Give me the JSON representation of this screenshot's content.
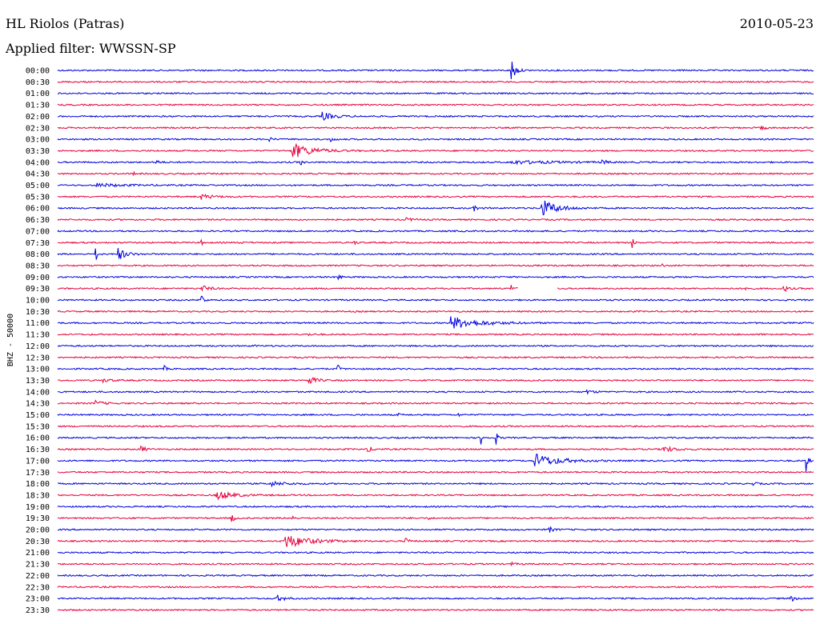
{
  "header": {
    "station": "HL Riolos (Patras)",
    "date": "2010-05-23",
    "filter": "Applied filter: WWSSN-SP"
  },
  "chart_data": {
    "type": "line",
    "title": "HL Riolos (Patras)",
    "ylabel": "BHZ - 50000",
    "colors": {
      "odd_trace": "#0000e0",
      "even_trace": "#e8003c"
    },
    "traces": [
      {
        "label": "00:00",
        "events": [
          {
            "t": 0.6,
            "amp": 18,
            "dur": 0.01
          }
        ]
      },
      {
        "label": "00:30",
        "events": []
      },
      {
        "label": "01:00",
        "events": []
      },
      {
        "label": "01:30",
        "events": []
      },
      {
        "label": "02:00",
        "events": [
          {
            "t": 0.35,
            "amp": 5,
            "dur": 0.03
          }
        ]
      },
      {
        "label": "02:30",
        "events": [
          {
            "t": 0.93,
            "amp": 3,
            "dur": 0.01
          }
        ]
      },
      {
        "label": "03:00",
        "events": [
          {
            "t": 0.28,
            "amp": 2,
            "dur": 0.01
          },
          {
            "t": 0.36,
            "amp": 3,
            "dur": 0.01
          }
        ]
      },
      {
        "label": "03:30",
        "events": [
          {
            "t": 0.31,
            "amp": 10,
            "dur": 0.05
          }
        ]
      },
      {
        "label": "04:00",
        "events": [
          {
            "t": 0.13,
            "amp": 3,
            "dur": 0.01
          },
          {
            "t": 0.32,
            "amp": 7,
            "dur": 0.005
          },
          {
            "t": 0.6,
            "amp": 2,
            "dur": 0.12
          },
          {
            "t": 0.72,
            "amp": 4,
            "dur": 0.01
          }
        ]
      },
      {
        "label": "04:30",
        "events": [
          {
            "t": 0.1,
            "amp": 2,
            "dur": 0.005
          }
        ]
      },
      {
        "label": "05:00",
        "events": [
          {
            "t": 0.05,
            "amp": 2,
            "dur": 0.07
          }
        ]
      },
      {
        "label": "05:30",
        "events": [
          {
            "t": 0.19,
            "amp": 3,
            "dur": 0.03
          }
        ]
      },
      {
        "label": "06:00",
        "events": [
          {
            "t": 0.55,
            "amp": 4,
            "dur": 0.01
          },
          {
            "t": 0.64,
            "amp": 11,
            "dur": 0.04
          }
        ]
      },
      {
        "label": "06:30",
        "events": [
          {
            "t": 0.46,
            "amp": 2,
            "dur": 0.02
          }
        ]
      },
      {
        "label": "07:00",
        "events": []
      },
      {
        "label": "07:30",
        "events": [
          {
            "t": 0.19,
            "amp": 3,
            "dur": 0.005
          },
          {
            "t": 0.24,
            "amp": 3,
            "dur": 0.005
          },
          {
            "t": 0.33,
            "amp": 3,
            "dur": 0.005
          },
          {
            "t": 0.39,
            "amp": 3,
            "dur": 0.01
          },
          {
            "t": 0.76,
            "amp": 7,
            "dur": 0.005
          }
        ]
      },
      {
        "label": "08:00",
        "events": [
          {
            "t": 0.05,
            "amp": 11,
            "dur": 0.005
          },
          {
            "t": 0.08,
            "amp": 8,
            "dur": 0.02
          }
        ]
      },
      {
        "label": "08:30",
        "events": [
          {
            "t": 0.8,
            "amp": 2,
            "dur": 0.005
          }
        ]
      },
      {
        "label": "09:00",
        "events": [
          {
            "t": 0.37,
            "amp": 8,
            "dur": 0.005
          }
        ]
      },
      {
        "label": "09:30",
        "events": [
          {
            "t": 0.19,
            "amp": 4,
            "dur": 0.02
          },
          {
            "t": 0.6,
            "amp": 6,
            "dur": 0.005
          },
          {
            "t": 0.91,
            "amp": 4,
            "dur": 0.005
          },
          {
            "t": 0.96,
            "amp": 5,
            "dur": 0.01
          }
        ],
        "gap": [
          0.61,
          0.66
        ]
      },
      {
        "label": "10:00",
        "events": [
          {
            "t": 0.19,
            "amp": 12,
            "dur": 0.005
          }
        ]
      },
      {
        "label": "10:30",
        "events": []
      },
      {
        "label": "11:00",
        "events": [
          {
            "t": 0.52,
            "amp": 8,
            "dur": 0.07
          }
        ]
      },
      {
        "label": "11:30",
        "events": [
          {
            "t": 0.33,
            "amp": 2,
            "dur": 0.01
          },
          {
            "t": 0.93,
            "amp": 2,
            "dur": 0.005
          }
        ]
      },
      {
        "label": "12:00",
        "events": [
          {
            "t": 0.26,
            "amp": 2,
            "dur": 0.005
          }
        ]
      },
      {
        "label": "12:30",
        "events": []
      },
      {
        "label": "13:00",
        "events": [
          {
            "t": 0.14,
            "amp": 6,
            "dur": 0.005
          },
          {
            "t": 0.37,
            "amp": 7,
            "dur": 0.005
          }
        ]
      },
      {
        "label": "13:30",
        "events": [
          {
            "t": 0.06,
            "amp": 2,
            "dur": 0.02
          },
          {
            "t": 0.33,
            "amp": 6,
            "dur": 0.02
          }
        ]
      },
      {
        "label": "14:00",
        "events": [
          {
            "t": 0.7,
            "amp": 2,
            "dur": 0.02
          }
        ]
      },
      {
        "label": "14:30",
        "events": [
          {
            "t": 0.05,
            "amp": 3,
            "dur": 0.02
          }
        ]
      },
      {
        "label": "15:00",
        "events": [
          {
            "t": 0.45,
            "amp": 2,
            "dur": 0.005
          },
          {
            "t": 0.53,
            "amp": 2,
            "dur": 0.005
          }
        ]
      },
      {
        "label": "15:30",
        "events": []
      },
      {
        "label": "16:00",
        "events": [
          {
            "t": 0.56,
            "amp": 9,
            "dur": 0.005
          },
          {
            "t": 0.58,
            "amp": 8,
            "dur": 0.005
          }
        ]
      },
      {
        "label": "16:30",
        "events": [
          {
            "t": 0.11,
            "amp": 5,
            "dur": 0.01
          },
          {
            "t": 0.41,
            "amp": 5,
            "dur": 0.01
          },
          {
            "t": 0.8,
            "amp": 4,
            "dur": 0.03
          }
        ]
      },
      {
        "label": "17:00",
        "events": [
          {
            "t": 0.63,
            "amp": 9,
            "dur": 0.06
          },
          {
            "t": 0.99,
            "amp": 14,
            "dur": 0.005
          }
        ]
      },
      {
        "label": "17:30",
        "events": []
      },
      {
        "label": "18:00",
        "events": [
          {
            "t": 0.28,
            "amp": 3,
            "dur": 0.04
          },
          {
            "t": 0.92,
            "amp": 2,
            "dur": 0.01
          }
        ]
      },
      {
        "label": "18:30",
        "events": [
          {
            "t": 0.21,
            "amp": 6,
            "dur": 0.04
          }
        ]
      },
      {
        "label": "19:00",
        "events": []
      },
      {
        "label": "19:30",
        "events": [
          {
            "t": 0.23,
            "amp": 10,
            "dur": 0.005
          },
          {
            "t": 0.31,
            "amp": 5,
            "dur": 0.005
          },
          {
            "t": 0.49,
            "amp": 2,
            "dur": 0.005
          }
        ]
      },
      {
        "label": "20:00",
        "events": [
          {
            "t": 0.65,
            "amp": 4,
            "dur": 0.01
          }
        ]
      },
      {
        "label": "20:30",
        "events": [
          {
            "t": 0.3,
            "amp": 9,
            "dur": 0.06
          },
          {
            "t": 0.46,
            "amp": 4,
            "dur": 0.01
          }
        ]
      },
      {
        "label": "21:00",
        "events": []
      },
      {
        "label": "21:30",
        "events": [
          {
            "t": 0.6,
            "amp": 2,
            "dur": 0.01
          }
        ]
      },
      {
        "label": "22:00",
        "events": []
      },
      {
        "label": "22:30",
        "events": []
      },
      {
        "label": "23:00",
        "events": [
          {
            "t": 0.29,
            "amp": 4,
            "dur": 0.02
          },
          {
            "t": 0.97,
            "amp": 4,
            "dur": 0.01
          }
        ]
      },
      {
        "label": "23:30",
        "events": []
      }
    ]
  }
}
